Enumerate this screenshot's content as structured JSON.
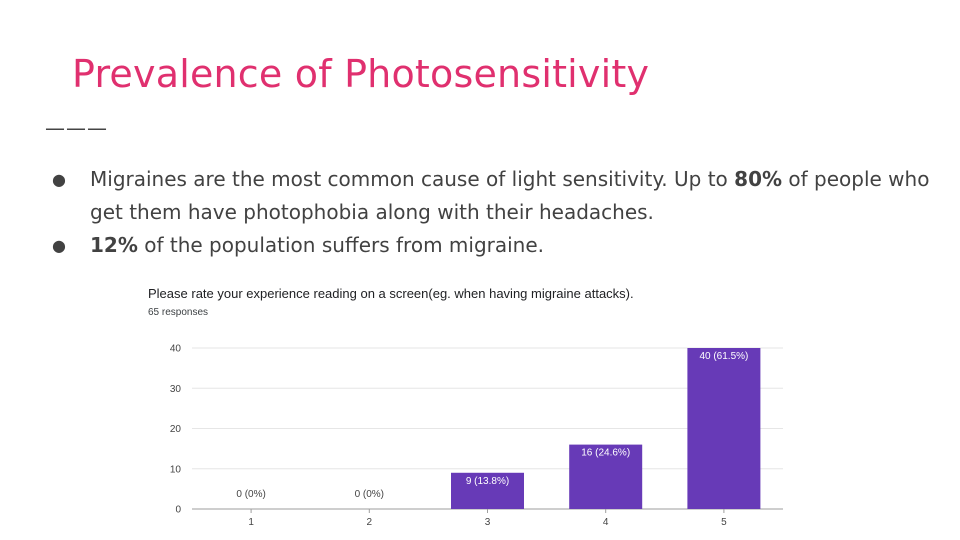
{
  "slide": {
    "title": "Prevalence of Photosensitivity",
    "rule": "———",
    "bullets": [
      {
        "pre": "Migraines are the most common cause of light sensitivity. Up to ",
        "bold": "80%",
        "post": " of people who get them have photophobia along with their headaches."
      },
      {
        "pre": "",
        "bold": "12%",
        "post": " of the population suffers from migraine."
      }
    ]
  },
  "colors": {
    "title": "#e0306f",
    "bar": "#673ab7",
    "grid": "#e6e6e6",
    "text": "#424242"
  },
  "chart_data": {
    "type": "bar",
    "title": "Please rate your experience reading on a screen(eg. when having migraine attacks).",
    "subtitle": "65 responses",
    "categories": [
      "1",
      "2",
      "3",
      "4",
      "5"
    ],
    "values": [
      0,
      0,
      9,
      16,
      40
    ],
    "data_labels": [
      "0 (0%)",
      "0 (0%)",
      "9 (13.8%)",
      "16 (24.6%)",
      "40 (61.5%)"
    ],
    "yticks": [
      0,
      10,
      20,
      30,
      40
    ],
    "ylim": [
      0,
      40
    ],
    "grid": true,
    "legend": "none"
  }
}
